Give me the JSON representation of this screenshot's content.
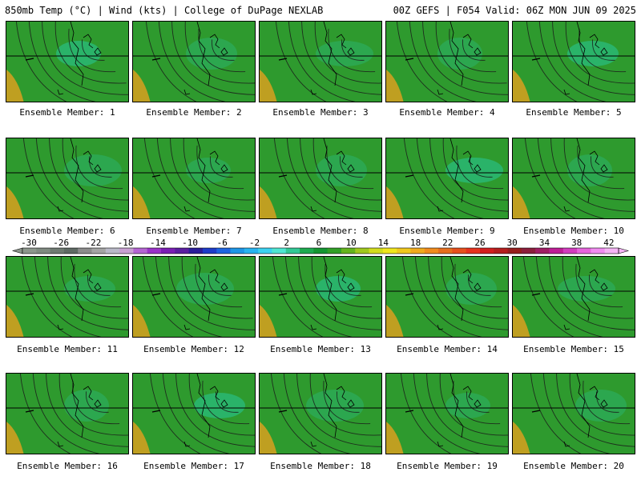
{
  "header": {
    "title_left": "850mb Temp (°C) | Wind (kts) | College of DuPage NEXLAB",
    "title_right": "00Z GEFS | F054 Valid: 06Z MON JUN 09 2025"
  },
  "colorbar": {
    "tick_labels": [
      "-30",
      "-26",
      "-22",
      "-18",
      "-14",
      "-10",
      "-6",
      "-2",
      "2",
      "6",
      "10",
      "14",
      "18",
      "22",
      "26",
      "30",
      "34",
      "38",
      "42"
    ],
    "colors": [
      "#8c968c",
      "#7f8a80",
      "#6f7a72",
      "#5f6a64",
      "#8c8c8c",
      "#a4a4a4",
      "#b9b9c8",
      "#c8a0d2",
      "#b464d2",
      "#9a32c8",
      "#7a1eb4",
      "#5a1ea0",
      "#2b1e9a",
      "#1e3cc8",
      "#1e64e1",
      "#1e96e6",
      "#28b4f0",
      "#3cd2f0",
      "#50e6d2",
      "#32c896",
      "#1eaa50",
      "#149632",
      "#32a028",
      "#64b41e",
      "#a0c81e",
      "#d2dc1e",
      "#f0e61e",
      "#f0c81e",
      "#f0aa1e",
      "#f08c1e",
      "#e66e1e",
      "#e6501e",
      "#e6321e",
      "#d21e1e",
      "#b41e1e",
      "#961e1e",
      "#8c1e3c",
      "#a01e64",
      "#be1e96",
      "#d23cbe",
      "#e664dc",
      "#f08cf0",
      "#f5b4f5"
    ]
  },
  "panels": [
    {
      "label": "Ensemble Member: 1"
    },
    {
      "label": "Ensemble Member: 2"
    },
    {
      "label": "Ensemble Member: 3"
    },
    {
      "label": "Ensemble Member: 4"
    },
    {
      "label": "Ensemble Member: 5"
    },
    {
      "label": "Ensemble Member: 6"
    },
    {
      "label": "Ensemble Member: 7"
    },
    {
      "label": "Ensemble Member: 8"
    },
    {
      "label": "Ensemble Member: 9"
    },
    {
      "label": "Ensemble Member: 10"
    },
    {
      "label": "Ensemble Member: 11"
    },
    {
      "label": "Ensemble Member: 12"
    },
    {
      "label": "Ensemble Member: 13"
    },
    {
      "label": "Ensemble Member: 14"
    },
    {
      "label": "Ensemble Member: 15"
    },
    {
      "label": "Ensemble Member: 16"
    },
    {
      "label": "Ensemble Member: 17"
    },
    {
      "label": "Ensemble Member: 18"
    },
    {
      "label": "Ensemble Member: 19"
    },
    {
      "label": "Ensemble Member: 20"
    }
  ]
}
